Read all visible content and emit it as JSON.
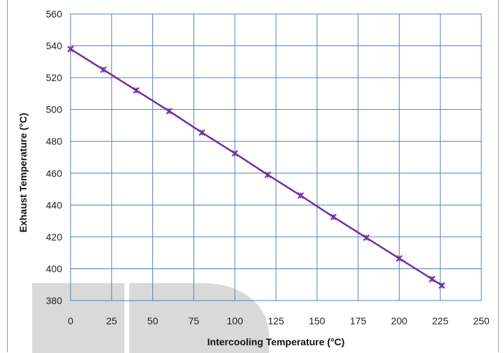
{
  "chart_data": {
    "type": "line",
    "xlabel": "Intercooling Temperature (°C)",
    "ylabel": "Exhaust Temperature (°C)",
    "xlim": [
      0,
      250
    ],
    "ylim": [
      380,
      560
    ],
    "x_ticks": [
      0,
      25,
      50,
      75,
      100,
      125,
      150,
      175,
      200,
      225,
      250
    ],
    "y_ticks": [
      380,
      400,
      420,
      440,
      460,
      480,
      500,
      520,
      540,
      560
    ],
    "grid": true,
    "legend": "none",
    "series": [
      {
        "color": "#7030A0",
        "marker": "x",
        "x": [
          0,
          20,
          40,
          60,
          80,
          100,
          120,
          140,
          160,
          180,
          200,
          220,
          226
        ],
        "y": [
          538,
          525,
          512,
          499,
          485.5,
          472.5,
          459,
          446,
          432.5,
          419.5,
          406.5,
          393.5,
          389.5
        ]
      }
    ]
  },
  "colors": {
    "grid": "#4f81bd",
    "plot_border": "#4f81bd",
    "series": "#7030A0",
    "watermark": "#d9d9d9"
  }
}
